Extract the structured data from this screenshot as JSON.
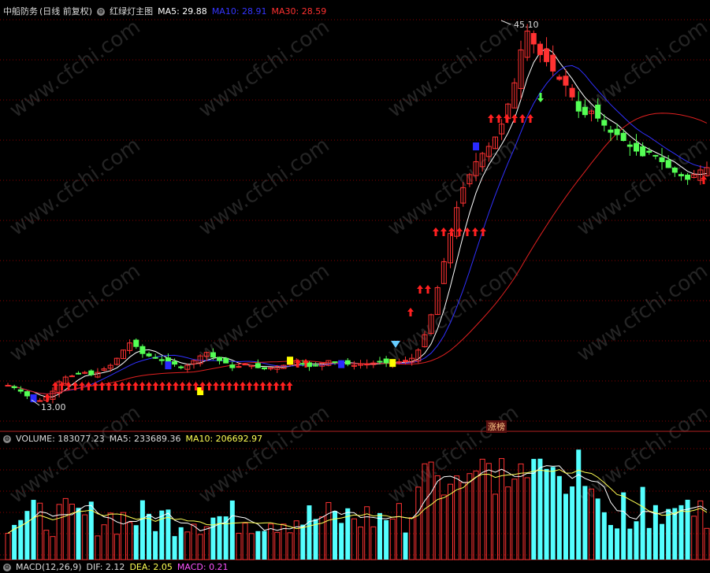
{
  "stock": {
    "name": "中船防务",
    "period": "(日线 前复权)",
    "indicator": "红绿灯主图"
  },
  "ma": {
    "ma5_label": "MA5: 29.88",
    "ma10_label": "MA10: 28.91",
    "ma30_label": "MA30: 28.59"
  },
  "volume": {
    "label": "VOLUME: 183077.23",
    "ma5_label": "MA5: 233689.36",
    "ma10_label": "MA10: 206692.97"
  },
  "macd": {
    "label": "MACD(12,26,9)",
    "dif": "DIF: 2.12",
    "dea": "DEA: 2.05",
    "macd": "MACD: 0.21"
  },
  "annotations": {
    "high": "45.10",
    "low": "13.00",
    "limit_up": "涨榜"
  },
  "watermark": "www.cfchi.com",
  "colors": {
    "up": "#ff3232",
    "down": "#54ff54",
    "ma5": "#ffffff",
    "ma10": "#3030ff",
    "ma30": "#e02020",
    "vol_cyan": "#54ffff",
    "vol_ma10": "#ffff54",
    "signal_yellow": "#ffff00",
    "signal_blue": "#2a2aff",
    "grid": "#8a0000"
  },
  "chart_data": {
    "type": "candlestick",
    "title": "中船防务 (日线 前复权) 红绿灯主图",
    "y_high": 45.1,
    "y_low": 13.0,
    "candles_close_approx": [
      14.5,
      14.3,
      14.0,
      13.6,
      13.3,
      13.2,
      13.5,
      14.0,
      14.8,
      15.2,
      15.3,
      15.5,
      15.6,
      15.4,
      15.6,
      15.9,
      16.2,
      16.8,
      17.5,
      18.1,
      17.8,
      17.2,
      17.0,
      16.8,
      16.6,
      16.4,
      16.3,
      16.0,
      16.2,
      16.6,
      17.0,
      17.3,
      16.9,
      16.6,
      16.4,
      16.0,
      16.1,
      16.3,
      16.2,
      16.0,
      15.9,
      16.0,
      16.1,
      16.2,
      16.4,
      16.6,
      16.3,
      16.1,
      16.2,
      16.4,
      16.6,
      16.5,
      16.4,
      16.3,
      16.2,
      16.3,
      16.3,
      16.4,
      16.5,
      16.4,
      16.4,
      16.5,
      16.5,
      16.8,
      17.5,
      18.8,
      20.5,
      22.8,
      25.0,
      27.4,
      29.6,
      31.3,
      32.4,
      33.5,
      34.2,
      34.8,
      35.6,
      36.7,
      38.4,
      40.2,
      43.0,
      44.6,
      43.5,
      42.6,
      42.0,
      41.2,
      40.5,
      40.0,
      39.0,
      37.8,
      37.5,
      37.8,
      37.2,
      36.6,
      36.0,
      35.8,
      35.3,
      34.8,
      34.4,
      34.0,
      34.3,
      34.0,
      33.5,
      33.0,
      32.6,
      32.3,
      32.0,
      32.4,
      32.8,
      33.0
    ],
    "volume_note": "daily volume bars, cyan = down days, red outline = up days"
  }
}
